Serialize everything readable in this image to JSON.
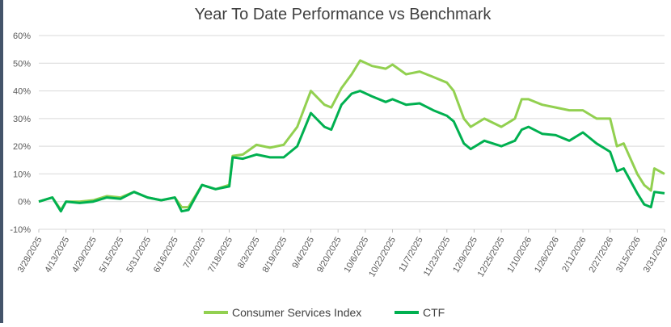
{
  "chart_data": {
    "type": "line",
    "title": "Year To Date Performance vs Benchmark",
    "x": [
      "3/28/2025",
      "4/5/2025",
      "4/10/2025",
      "4/13/2025",
      "4/21/2025",
      "4/29/2025",
      "5/7/2025",
      "5/15/2025",
      "5/23/2025",
      "5/31/2025",
      "6/8/2025",
      "6/16/2025",
      "6/20/2025",
      "6/24/2025",
      "7/2/2025",
      "7/10/2025",
      "7/18/2025",
      "7/20/2025",
      "7/26/2025",
      "8/3/2025",
      "8/11/2025",
      "8/19/2025",
      "8/27/2025",
      "9/4/2025",
      "9/12/2025",
      "9/16/2025",
      "9/22/2025",
      "9/28/2025",
      "10/3/2025",
      "10/10/2025",
      "10/18/2025",
      "10/22/2025",
      "10/30/2025",
      "11/7/2025",
      "11/15/2025",
      "11/23/2025",
      "11/27/2025",
      "12/3/2025",
      "12/7/2025",
      "12/15/2025",
      "12/25/2025",
      "1/2/2026",
      "1/6/2026",
      "1/10/2026",
      "1/18/2026",
      "1/26/2026",
      "2/3/2026",
      "2/11/2026",
      "2/19/2026",
      "2/27/2026",
      "3/3/2026",
      "3/7/2026",
      "3/15/2026",
      "3/19/2026",
      "3/23/2026",
      "3/25/2026",
      "3/31/2026"
    ],
    "series": [
      {
        "name": "Consumer Services Index",
        "color": "#92d050",
        "values": [
          0,
          1.5,
          -3,
          0,
          0,
          0.5,
          2,
          1.5,
          3.5,
          1.5,
          0.5,
          1.5,
          -2,
          -2,
          6,
          4.5,
          6,
          16.5,
          17,
          20.5,
          19.5,
          20.5,
          27,
          40,
          35,
          34,
          41,
          46,
          51,
          49,
          48,
          49.5,
          46,
          47,
          45,
          43,
          40,
          30,
          27,
          30,
          27,
          30,
          37,
          37,
          35,
          34,
          33,
          33,
          30,
          30,
          20,
          21,
          10,
          6,
          4,
          12,
          10
        ]
      },
      {
        "name": "CTF",
        "color": "#00b050",
        "values": [
          0,
          1.5,
          -3.5,
          0,
          -0.5,
          0,
          1.5,
          1,
          3.5,
          1.5,
          0.5,
          1.5,
          -3.5,
          -3,
          6,
          4.5,
          5.5,
          16,
          15.5,
          17,
          16,
          16,
          20,
          32,
          27,
          26,
          35,
          39,
          40,
          38,
          36,
          37,
          35,
          35.5,
          33,
          31,
          29,
          21,
          19,
          22,
          20,
          22,
          26,
          27,
          24.5,
          24,
          22,
          25,
          21,
          18,
          11,
          12,
          3,
          -1,
          -2,
          3.5,
          3
        ]
      }
    ],
    "xlim": [
      "3/28/2025",
      "3/31/2026"
    ],
    "xticks": [
      "3/28/2025",
      "4/13/2025",
      "4/29/2025",
      "5/15/2025",
      "5/31/2025",
      "6/16/2025",
      "7/2/2025",
      "7/18/2025",
      "8/3/2025",
      "8/19/2025",
      "9/4/2025",
      "9/20/2025",
      "10/6/2025",
      "10/22/2025",
      "11/7/2025",
      "11/23/2025",
      "12/9/2025",
      "12/25/2025",
      "1/10/2026",
      "1/26/2026",
      "2/11/2026",
      "2/27/2026",
      "3/15/2026",
      "3/31/2026"
    ],
    "ylim": [
      -10,
      60
    ],
    "yticks": [
      {
        "value": -10,
        "label": "-10%"
      },
      {
        "value": 0,
        "label": "0%"
      },
      {
        "value": 10,
        "label": "10%"
      },
      {
        "value": 20,
        "label": "20%"
      },
      {
        "value": 30,
        "label": "30%"
      },
      {
        "value": 40,
        "label": "40%"
      },
      {
        "value": 50,
        "label": "50%"
      },
      {
        "value": 60,
        "label": "60%"
      }
    ],
    "grid": true,
    "legend": "bottom"
  }
}
